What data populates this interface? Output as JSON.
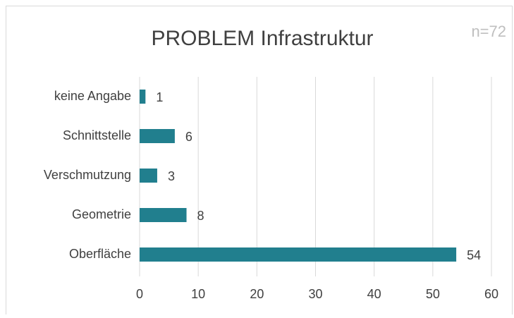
{
  "chart_data": {
    "type": "bar",
    "orientation": "horizontal",
    "title": "PROBLEM Infrastruktur",
    "annotation": "n=72",
    "categories": [
      "keine Angabe",
      "Schnittstelle",
      "Verschmutzung",
      "Geometrie",
      "Oberfläche"
    ],
    "values": [
      1,
      6,
      3,
      8,
      54
    ],
    "color": "#217f8e",
    "xlim": [
      0,
      60
    ],
    "xticks": [
      0,
      10,
      20,
      30,
      40,
      50,
      60
    ],
    "grid": true
  }
}
